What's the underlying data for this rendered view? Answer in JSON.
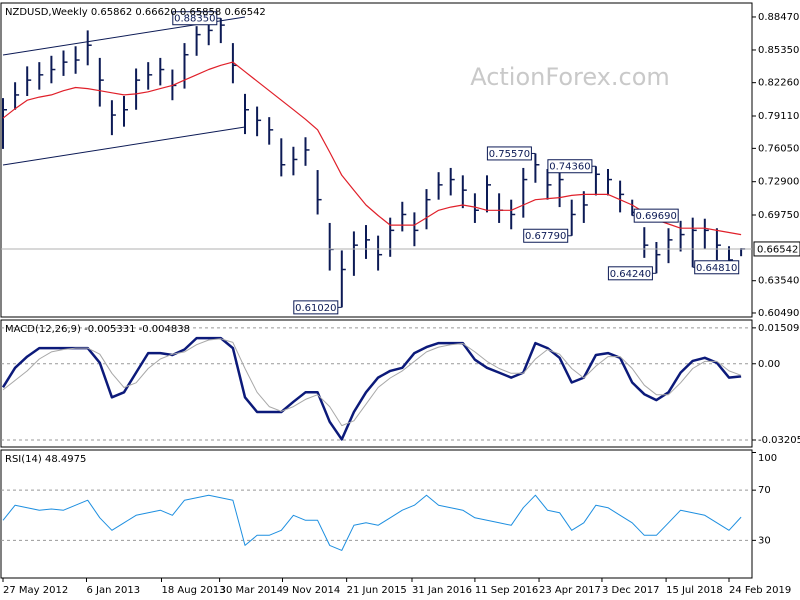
{
  "chart_data": [
    {
      "type": "ohlc",
      "title": "NZDUSD,Weekly  0.65862 0.66620 0.65858 0.66542",
      "watermark": "ActionForex.com",
      "color": "#0c1a55",
      "high": [
        0.808,
        0.823,
        0.838,
        0.842,
        0.848,
        0.853,
        0.857,
        0.872,
        0.846,
        0.806,
        0.81,
        0.836,
        0.842,
        0.846,
        0.835,
        0.86,
        0.876,
        0.881,
        0.8835,
        0.86,
        0.812,
        0.8,
        0.79,
        0.77,
        0.762,
        0.771,
        0.74,
        0.69,
        0.664,
        0.682,
        0.688,
        0.678,
        0.695,
        0.71,
        0.7,
        0.722,
        0.738,
        0.742,
        0.735,
        0.718,
        0.735,
        0.718,
        0.712,
        0.742,
        0.7557,
        0.741,
        0.74,
        0.712,
        0.72,
        0.7436,
        0.741,
        0.73,
        0.712,
        0.686,
        0.672,
        0.685,
        0.692,
        0.695,
        0.694,
        0.685,
        0.668,
        0.6662
      ],
      "low": [
        0.76,
        0.797,
        0.81,
        0.816,
        0.822,
        0.829,
        0.831,
        0.839,
        0.8,
        0.773,
        0.781,
        0.797,
        0.816,
        0.82,
        0.806,
        0.817,
        0.848,
        0.858,
        0.86,
        0.822,
        0.774,
        0.772,
        0.764,
        0.734,
        0.735,
        0.744,
        0.698,
        0.645,
        0.6102,
        0.64,
        0.656,
        0.645,
        0.658,
        0.682,
        0.668,
        0.684,
        0.712,
        0.716,
        0.704,
        0.69,
        0.7,
        0.69,
        0.684,
        0.695,
        0.728,
        0.712,
        0.705,
        0.6779,
        0.69,
        0.716,
        0.716,
        0.7,
        0.6969,
        0.657,
        0.6424,
        0.652,
        0.663,
        0.6481,
        0.665,
        0.655,
        0.648,
        0.65858
      ],
      "close": [
        0.797,
        0.811,
        0.825,
        0.83,
        0.835,
        0.842,
        0.844,
        0.858,
        0.825,
        0.792,
        0.797,
        0.825,
        0.83,
        0.835,
        0.82,
        0.849,
        0.868,
        0.872,
        0.877,
        0.839,
        0.797,
        0.787,
        0.778,
        0.745,
        0.75,
        0.759,
        0.712,
        0.665,
        0.646,
        0.669,
        0.674,
        0.66,
        0.683,
        0.698,
        0.683,
        0.712,
        0.726,
        0.731,
        0.721,
        0.702,
        0.726,
        0.702,
        0.698,
        0.731,
        0.745,
        0.726,
        0.731,
        0.698,
        0.707,
        0.736,
        0.731,
        0.717,
        0.7,
        0.669,
        0.66,
        0.674,
        0.679,
        0.683,
        0.683,
        0.669,
        0.655,
        0.66542
      ],
      "overlays": [
        {
          "color": "#e0202a",
          "values": [
            0.789,
            0.798,
            0.806,
            0.809,
            0.811,
            0.815,
            0.818,
            0.817,
            0.815,
            0.813,
            0.811,
            0.812,
            0.814,
            0.817,
            0.82,
            0.825,
            0.83,
            0.835,
            0.839,
            0.842,
            0.833,
            0.824,
            0.815,
            0.806,
            0.797,
            0.788,
            0.778,
            0.757,
            0.735,
            0.721,
            0.707,
            0.697,
            0.688,
            0.688,
            0.688,
            0.695,
            0.702,
            0.705,
            0.707,
            0.705,
            0.702,
            0.702,
            0.702,
            0.707,
            0.712,
            0.713,
            0.714,
            0.716,
            0.717,
            0.717,
            0.717,
            0.712,
            0.707,
            0.7,
            0.693,
            0.689,
            0.685,
            0.685,
            0.685,
            0.683,
            0.681,
            0.679
          ]
        }
      ],
      "trendlines": [
        {
          "color": "#0c1a55",
          "x": [
            0,
            20
          ],
          "values": [
            0.8488,
            0.8847
          ]
        },
        {
          "color": "#0c1a55",
          "x": [
            0,
            20
          ],
          "values": [
            0.7448,
            0.7807
          ]
        }
      ],
      "annotations": [
        {
          "x": 18,
          "value": 0.8835,
          "label": "0.88350"
        },
        {
          "x": 44,
          "value": 0.7557,
          "label": "0.75570"
        },
        {
          "x": 49,
          "value": 0.7436,
          "label": "0.74360"
        },
        {
          "x": 47,
          "value": 0.6779,
          "label": "0.67790"
        },
        {
          "x": 52,
          "value": 0.6969,
          "label": "0.69690"
        },
        {
          "x": 54,
          "value": 0.6424,
          "label": "0.64240"
        },
        {
          "x": 57,
          "value": 0.6481,
          "label": "0.64810"
        },
        {
          "x": 28,
          "value": 0.6102,
          "label": "0.61020"
        }
      ],
      "last": {
        "value": 0.66542,
        "label": "0.66542"
      },
      "xlim": [
        0,
        61.9
      ],
      "ylim": [
        0.6011,
        0.8979
      ],
      "yticks": [
        {
          "value": 0.8847,
          "label": "0.88470"
        },
        {
          "value": 0.8535,
          "label": "0.85350"
        },
        {
          "value": 0.8226,
          "label": "0.82260"
        },
        {
          "value": 0.7911,
          "label": "0.79110"
        },
        {
          "value": 0.7605,
          "label": "0.76050"
        },
        {
          "value": 0.729,
          "label": "0.72900"
        },
        {
          "value": 0.6975,
          "label": "0.69750"
        },
        {
          "value": 0.6354,
          "label": "0.63540"
        },
        {
          "value": 0.6049,
          "label": "0.60490"
        }
      ],
      "grid": false
    },
    {
      "type": "line",
      "title": "MACD(12,26,9) -0.005331 -0.004838",
      "series": [
        {
          "color": "#0c1a7a",
          "values": [
            -0.0099,
            -0.0017,
            0.003,
            0.0066,
            0.0066,
            0.0066,
            0.0066,
            0.0066,
            0.0004,
            -0.0141,
            -0.012,
            -0.0037,
            0.0045,
            0.0045,
            0.0037,
            0.006,
            0.0108,
            0.0108,
            0.0108,
            0.0066,
            -0.0141,
            -0.0203,
            -0.0203,
            -0.0203,
            -0.016,
            -0.012,
            -0.012,
            -0.0244,
            -0.0318,
            -0.0203,
            -0.012,
            -0.0058,
            -0.003,
            -0.0017,
            0.0045,
            0.007,
            0.0087,
            0.0087,
            0.0087,
            0.0017,
            -0.0017,
            -0.0037,
            -0.0058,
            -0.0037,
            0.0087,
            0.0066,
            0.0025,
            -0.0079,
            -0.0058,
            0.0037,
            0.0045,
            0.0025,
            -0.0079,
            -0.0128,
            -0.0153,
            -0.012,
            -0.0037,
            0.0012,
            0.0025,
            0.0004,
            -0.0058,
            -0.005331
          ]
        },
        {
          "color": "#a8a8a8",
          "values": [
            -0.011,
            -0.007,
            -0.003,
            0.002,
            0.005,
            0.006,
            0.0066,
            0.0066,
            0.004,
            -0.004,
            -0.01,
            -0.008,
            -0.002,
            0.002,
            0.004,
            0.005,
            0.008,
            0.01,
            0.0105,
            0.009,
            -0.002,
            -0.012,
            -0.018,
            -0.02,
            -0.018,
            -0.015,
            -0.013,
            -0.018,
            -0.026,
            -0.024,
            -0.017,
            -0.01,
            -0.006,
            -0.003,
            0.001,
            0.005,
            0.007,
            0.008,
            0.0085,
            0.005,
            0.001,
            -0.002,
            -0.004,
            -0.004,
            0.002,
            0.006,
            0.004,
            -0.002,
            -0.006,
            -0.001,
            0.003,
            0.003,
            -0.002,
            -0.009,
            -0.013,
            -0.013,
            -0.008,
            -0.002,
            0.001,
            0.001,
            -0.003,
            -0.004838
          ]
        }
      ],
      "xlim": [
        0,
        61.9
      ],
      "ylim": [
        -0.035,
        0.0184
      ],
      "yticks": [
        {
          "value": 0.015093,
          "label": "0.015093"
        },
        {
          "value": 0,
          "label": "0.00"
        },
        {
          "value": -0.032057,
          "label": "-0.032057"
        }
      ],
      "grid": true
    },
    {
      "type": "line",
      "title": "RSI(14) 48.4975",
      "series": [
        {
          "color": "#1e8fe0",
          "values": [
            46,
            58,
            56,
            54,
            55,
            54,
            58,
            62,
            48,
            38,
            44,
            50,
            52,
            54,
            50,
            62,
            64,
            66,
            64,
            62,
            26,
            34,
            34,
            38,
            50,
            46,
            46,
            26,
            22,
            42,
            44,
            42,
            48,
            54,
            58,
            66,
            58,
            56,
            54,
            48,
            46,
            44,
            42,
            56,
            66,
            54,
            52,
            38,
            44,
            58,
            56,
            50,
            44,
            34,
            34,
            44,
            54,
            52,
            50,
            44,
            38,
            48.4975
          ]
        }
      ],
      "xlim": [
        0,
        61.9
      ],
      "ylim": [
        0,
        102
      ],
      "yticks": [
        100,
        70,
        30
      ],
      "grid": true,
      "xticks": [
        {
          "value": 0,
          "label": "27 May 2012"
        },
        {
          "value": 6.9,
          "label": "6 Jan 2013"
        },
        {
          "value": 13.1,
          "label": "18 Aug 2013"
        },
        {
          "value": 17.9,
          "label": "30 Mar 2014"
        },
        {
          "value": 23.1,
          "label": "9 Nov 2014"
        },
        {
          "value": 28.4,
          "label": "21 Jun 2015"
        },
        {
          "value": 33.8,
          "label": "31 Jan 2016"
        },
        {
          "value": 39.0,
          "label": "11 Sep 2016"
        },
        {
          "value": 44.3,
          "label": "23 Apr 2017"
        },
        {
          "value": 49.5,
          "label": "3 Dec 2017"
        },
        {
          "value": 54.8,
          "label": "15 Jul 2018"
        },
        {
          "value": 60.0,
          "label": "24 Feb 2019"
        }
      ]
    }
  ]
}
